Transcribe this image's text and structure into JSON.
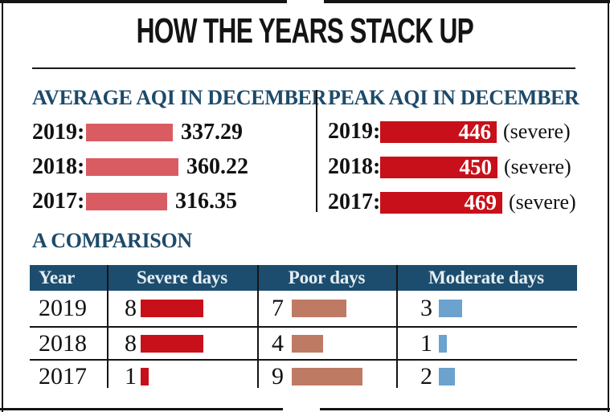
{
  "title": "HOW THE YEARS STACK UP",
  "avg": {
    "heading": "AVERAGE AQI IN DECEMBER",
    "rows": [
      {
        "label": "2019:",
        "value": 337.29,
        "text": "337.29"
      },
      {
        "label": "2018:",
        "value": 360.22,
        "text": "360.22"
      },
      {
        "label": "2017:",
        "value": 316.35,
        "text": "316.35"
      }
    ]
  },
  "peak": {
    "heading": "PEAK AQI IN DECEMBER",
    "rows": [
      {
        "label": "2019:",
        "value": 446,
        "text": "446",
        "note": "(severe)"
      },
      {
        "label": "2018:",
        "value": 450,
        "text": "450",
        "note": "(severe)"
      },
      {
        "label": "2017:",
        "value": 469,
        "text": "469",
        "note": "(severe)"
      }
    ]
  },
  "comparison": {
    "heading": "A COMPARISON",
    "columns": [
      "Year",
      "Severe days",
      "Poor days",
      "Moderate days"
    ],
    "rows": [
      {
        "year": "2019",
        "severe": 8,
        "poor": 7,
        "moderate": 3
      },
      {
        "year": "2018",
        "severe": 8,
        "poor": 4,
        "moderate": 1
      },
      {
        "year": "2017",
        "severe": 1,
        "poor": 9,
        "moderate": 2
      }
    ]
  },
  "colors": {
    "heading_blue": "#1d4a6a",
    "table_header_bg": "#1d4d6e",
    "table_header_text": "#e4eef4",
    "avg_bar_salmon": "#d95c63",
    "peak_bar_red": "#c8101a",
    "severe_red": "#c8101a",
    "poor_brown": "#bf7a64",
    "moderate_blue": "#6ba2ce",
    "frame_black": "#141414"
  },
  "chart_data": [
    {
      "type": "bar",
      "title": "AVERAGE AQI IN DECEMBER",
      "orientation": "horizontal",
      "categories": [
        "2019",
        "2018",
        "2017"
      ],
      "values": [
        337.29,
        360.22,
        316.35
      ],
      "bar_color": "#d95c63",
      "value_labels": [
        "337.29",
        "360.22",
        "316.35"
      ],
      "legend": "none",
      "grid": false
    },
    {
      "type": "bar",
      "title": "PEAK AQI IN DECEMBER",
      "orientation": "horizontal",
      "categories": [
        "2019",
        "2018",
        "2017"
      ],
      "values": [
        446,
        450,
        469
      ],
      "annotations": [
        "(severe)",
        "(severe)",
        "(severe)"
      ],
      "bar_color": "#c8101a",
      "value_labels": [
        "446",
        "450",
        "469"
      ],
      "legend": "none",
      "grid": false
    },
    {
      "type": "bar",
      "title": "A COMPARISON",
      "orientation": "horizontal",
      "categories": [
        "2019",
        "2018",
        "2017"
      ],
      "series": [
        {
          "name": "Severe days",
          "values": [
            8,
            8,
            1
          ],
          "color": "#c8101a"
        },
        {
          "name": "Poor days",
          "values": [
            7,
            4,
            9
          ],
          "color": "#bf7a64"
        },
        {
          "name": "Moderate days",
          "values": [
            3,
            1,
            2
          ],
          "color": "#6ba2ce"
        }
      ],
      "legend": "column headers",
      "grid": false
    }
  ]
}
